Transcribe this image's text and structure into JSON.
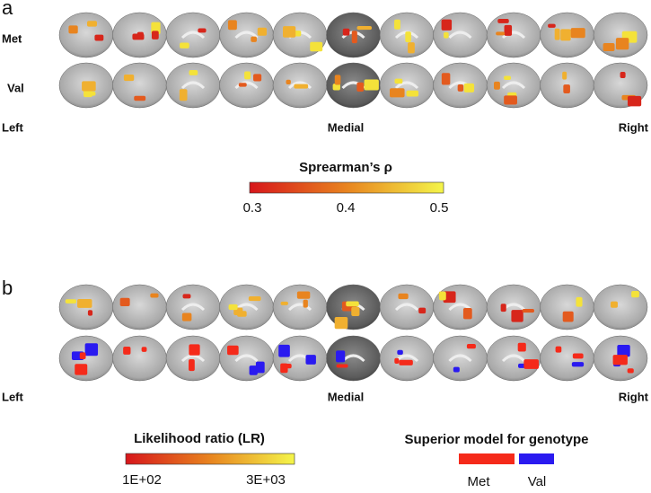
{
  "panel_a": {
    "label": "a",
    "rows": [
      "Met",
      "Val"
    ],
    "orientation": {
      "left": "Left",
      "center": "Medial",
      "right": "Right"
    },
    "colorbar": {
      "title": "Sprearman’s ρ",
      "ticks": [
        "0.3",
        "0.4",
        "0.5"
      ]
    }
  },
  "panel_b": {
    "label": "b",
    "orientation": {
      "left": "Left",
      "center": "Medial",
      "right": "Right"
    },
    "colorbar": {
      "title": "Likelihood ratio (LR)",
      "ticks": [
        "1E+02",
        "3E+03"
      ]
    },
    "legend": {
      "title": "Superior model for genotype",
      "items": [
        "Met",
        "Val"
      ]
    }
  }
}
